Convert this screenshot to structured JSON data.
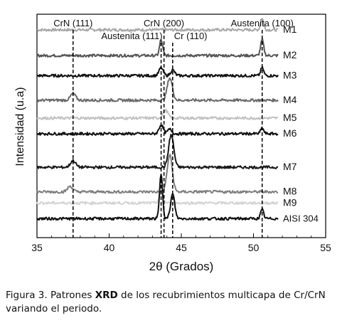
{
  "chart_data": {
    "type": "line",
    "title": "",
    "xlabel": "2θ (Grados)",
    "ylabel": "Intensidad (u.a)",
    "xlim": [
      35,
      55
    ],
    "xticks": [
      "35",
      "40",
      "45",
      "50",
      "55"
    ],
    "grid": false,
    "reference_lines": [
      {
        "label": "CrN (111)",
        "x": 37.5
      },
      {
        "label": "Austenita (111)",
        "x": 43.6
      },
      {
        "label": "CrN (200)",
        "x": 43.8
      },
      {
        "label": "Cr (110)",
        "x": 44.4
      },
      {
        "label": "Austenita (100)",
        "x": 50.6
      }
    ],
    "series": [
      {
        "name": "M1",
        "color": "#a8a8a8",
        "baseline": 0.93,
        "peaks": [
          {
            "x": 50.6,
            "h": 0.05,
            "w": 0.15
          }
        ]
      },
      {
        "name": "M2",
        "color": "#555555",
        "baseline": 0.815,
        "peaks": [
          {
            "x": 43.6,
            "h": 0.07,
            "w": 0.15
          },
          {
            "x": 50.6,
            "h": 0.07,
            "w": 0.15
          }
        ]
      },
      {
        "name": "M3",
        "color": "#111111",
        "baseline": 0.725,
        "peaks": [
          {
            "x": 43.6,
            "h": 0.035,
            "w": 0.2
          },
          {
            "x": 44.4,
            "h": 0.025,
            "w": 0.2
          },
          {
            "x": 50.6,
            "h": 0.035,
            "w": 0.15
          }
        ]
      },
      {
        "name": "M4",
        "color": "#6b6b6b",
        "baseline": 0.615,
        "peaks": [
          {
            "x": 37.5,
            "h": 0.03,
            "w": 0.25
          },
          {
            "x": 44.2,
            "h": 0.1,
            "w": 0.25
          }
        ]
      },
      {
        "name": "M5",
        "color": "#c2c2c2",
        "baseline": 0.535,
        "peaks": [
          {
            "x": 43.9,
            "h": 0.035,
            "w": 0.25
          }
        ]
      },
      {
        "name": "M6",
        "color": "#111111",
        "baseline": 0.465,
        "peaks": [
          {
            "x": 43.6,
            "h": 0.04,
            "w": 0.2
          },
          {
            "x": 44.2,
            "h": 0.02,
            "w": 0.2
          },
          {
            "x": 50.6,
            "h": 0.025,
            "w": 0.15
          }
        ]
      },
      {
        "name": "M7",
        "color": "#1a1a1a",
        "baseline": 0.315,
        "peaks": [
          {
            "x": 37.5,
            "h": 0.03,
            "w": 0.25
          },
          {
            "x": 44.3,
            "h": 0.145,
            "w": 0.25
          }
        ]
      },
      {
        "name": "M8",
        "color": "#808080",
        "baseline": 0.205,
        "peaks": [
          {
            "x": 37.3,
            "h": 0.025,
            "w": 0.25
          },
          {
            "x": 44.2,
            "h": 0.165,
            "w": 0.25
          }
        ]
      },
      {
        "name": "M9",
        "color": "#d4d4d4",
        "baseline": 0.155,
        "peaks": [
          {
            "x": 43.6,
            "h": 0.04,
            "w": 0.2
          }
        ]
      },
      {
        "name": "AISI 304",
        "color": "#111111",
        "baseline": 0.085,
        "peaks": [
          {
            "x": 43.6,
            "h": 0.2,
            "w": 0.15
          },
          {
            "x": 44.4,
            "h": 0.11,
            "w": 0.2
          },
          {
            "x": 50.6,
            "h": 0.04,
            "w": 0.15
          }
        ]
      }
    ]
  },
  "caption": {
    "prefix": "Figura 3. Patrones ",
    "bold": "XRD",
    "rest": " de los recubrimientos multicapa de Cr/CrN variando el periodo."
  }
}
